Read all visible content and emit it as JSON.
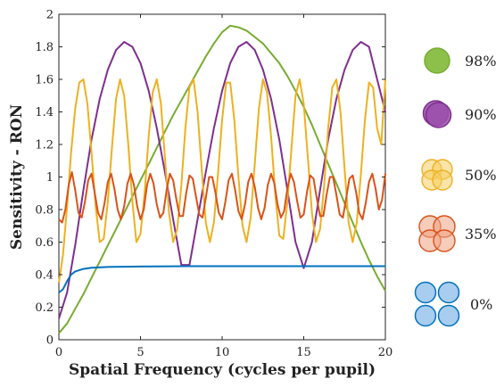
{
  "chart_data": {
    "type": "line",
    "title": "",
    "xlabel": "Spatial Frequency (cycles per pupil)",
    "ylabel": "Sensitivity - RON",
    "xlim": [
      0,
      20
    ],
    "ylim": [
      0,
      2
    ],
    "xticks": [
      0,
      5,
      10,
      15,
      20
    ],
    "xtick_labels": [
      "0",
      "5",
      "10",
      "15",
      "20"
    ],
    "yticks": [
      0,
      0.2,
      0.4,
      0.6,
      0.8,
      1,
      1.2,
      1.4,
      1.6,
      1.8,
      2
    ],
    "ytick_labels": [
      "0",
      "0.2",
      "0.4",
      "0.6",
      "0.8",
      "1",
      "1.2",
      "1.4",
      "1.6",
      "1.8",
      "2"
    ],
    "grid": false,
    "legend": {
      "placement": "right",
      "entries": [
        {
          "label": "98%",
          "icon": "single-circle-icon",
          "color": "#77ac30",
          "fill": "#8dc04a"
        },
        {
          "label": "90%",
          "icon": "two-circles-icon",
          "color": "#7e2f8e",
          "fill": "#9b4fab"
        },
        {
          "label": "50%",
          "icon": "four-overlapping-circles-icon",
          "color": "#edb120",
          "fill": "#f5cd63"
        },
        {
          "label": "35%",
          "icon": "four-overlapping-circles-icon",
          "color": "#d95319",
          "fill": "#eea283"
        },
        {
          "label": "0%",
          "icon": "four-separate-circles-icon",
          "color": "#0072bd",
          "fill": "#a9cdee"
        }
      ]
    },
    "series": [
      {
        "color": "#77ac30",
        "x": [
          0,
          0.5,
          1,
          1.5,
          2,
          2.5,
          3,
          3.5,
          4,
          4.5,
          5,
          5.5,
          6,
          6.5,
          7,
          7.5,
          8,
          8.5,
          9,
          9.5,
          10,
          10.5,
          11,
          11.5,
          12,
          12.5,
          13,
          13.5,
          14,
          14.5,
          15,
          15.5,
          16,
          16.5,
          17,
          17.5,
          18,
          18.5,
          19,
          19.5,
          20
        ],
        "y": [
          0.04,
          0.1,
          0.19,
          0.28,
          0.38,
          0.48,
          0.58,
          0.68,
          0.78,
          0.88,
          0.98,
          1.08,
          1.18,
          1.28,
          1.38,
          1.47,
          1.56,
          1.65,
          1.74,
          1.82,
          1.89,
          1.93,
          1.92,
          1.9,
          1.86,
          1.82,
          1.76,
          1.7,
          1.62,
          1.53,
          1.43,
          1.32,
          1.2,
          1.08,
          0.96,
          0.84,
          0.72,
          0.6,
          0.49,
          0.39,
          0.3
        ]
      },
      {
        "color": "#7e2f8e",
        "x": [
          0,
          0.5,
          1,
          1.5,
          2,
          2.5,
          3,
          3.5,
          4,
          4.5,
          5,
          5.5,
          6,
          6.5,
          7,
          7.5,
          8,
          8.5,
          9,
          9.5,
          10,
          10.5,
          11,
          11.5,
          12,
          12.5,
          13,
          13.5,
          14,
          14.5,
          15,
          15.5,
          16,
          16.5,
          17,
          17.5,
          18,
          18.5,
          19,
          19.5,
          20
        ],
        "y": [
          0.13,
          0.29,
          0.58,
          0.92,
          1.23,
          1.48,
          1.66,
          1.78,
          1.83,
          1.8,
          1.7,
          1.53,
          1.3,
          1.03,
          0.74,
          0.46,
          0.46,
          0.74,
          1.03,
          1.3,
          1.53,
          1.7,
          1.8,
          1.83,
          1.78,
          1.66,
          1.48,
          1.23,
          0.92,
          0.6,
          0.44,
          0.6,
          0.92,
          1.23,
          1.48,
          1.66,
          1.78,
          1.83,
          1.8,
          1.6,
          1.4
        ]
      },
      {
        "color": "#edb120",
        "x": [
          0,
          0.25,
          0.5,
          0.75,
          1,
          1.25,
          1.5,
          1.75,
          2,
          2.25,
          2.5,
          2.75,
          3,
          3.25,
          3.5,
          3.75,
          4,
          4.25,
          4.5,
          4.75,
          5,
          5.25,
          5.5,
          5.75,
          6,
          6.25,
          6.5,
          6.75,
          7,
          7.25,
          7.5,
          7.75,
          8,
          8.25,
          8.5,
          8.75,
          9,
          9.25,
          9.5,
          9.75,
          10,
          10.25,
          10.5,
          10.75,
          11,
          11.25,
          11.5,
          11.75,
          12,
          12.25,
          12.5,
          12.75,
          13,
          13.25,
          13.5,
          13.75,
          14,
          14.25,
          14.5,
          14.75,
          15,
          15.25,
          15.5,
          15.75,
          16,
          16.25,
          16.5,
          16.75,
          17,
          17.25,
          17.5,
          17.75,
          18,
          18.25,
          18.5,
          18.75,
          19,
          19.25,
          19.5,
          19.75,
          20
        ],
        "y": [
          0.35,
          0.52,
          0.82,
          1.15,
          1.42,
          1.58,
          1.6,
          1.45,
          1.15,
          0.82,
          0.6,
          0.62,
          0.85,
          1.18,
          1.48,
          1.6,
          1.5,
          1.2,
          0.85,
          0.6,
          0.65,
          0.9,
          1.25,
          1.52,
          1.6,
          1.45,
          1.12,
          0.78,
          0.6,
          0.68,
          0.95,
          1.3,
          1.55,
          1.6,
          1.4,
          1.05,
          0.72,
          0.6,
          0.72,
          1.02,
          1.35,
          1.58,
          1.58,
          1.35,
          1.0,
          0.7,
          0.6,
          0.75,
          1.08,
          1.42,
          1.6,
          1.52,
          1.25,
          0.9,
          0.64,
          0.62,
          0.85,
          1.18,
          1.5,
          1.6,
          1.45,
          1.12,
          0.78,
          0.6,
          0.68,
          0.95,
          1.3,
          1.55,
          1.6,
          1.4,
          1.05,
          0.72,
          0.6,
          0.72,
          1.02,
          1.35,
          1.58,
          1.55,
          1.3,
          1.2,
          1.6
        ]
      },
      {
        "color": "#d95319",
        "x": [
          0,
          0.2,
          0.4,
          0.6,
          0.8,
          1,
          1.2,
          1.4,
          1.6,
          1.8,
          2,
          2.2,
          2.4,
          2.6,
          2.8,
          3,
          3.2,
          3.4,
          3.6,
          3.8,
          4,
          4.2,
          4.4,
          4.6,
          4.8,
          5,
          5.2,
          5.4,
          5.6,
          5.8,
          6,
          6.2,
          6.4,
          6.6,
          6.8,
          7,
          7.2,
          7.4,
          7.6,
          7.8,
          8,
          8.2,
          8.4,
          8.6,
          8.8,
          9,
          9.2,
          9.4,
          9.6,
          9.8,
          10,
          10.2,
          10.4,
          10.6,
          10.8,
          11,
          11.2,
          11.4,
          11.6,
          11.8,
          12,
          12.2,
          12.4,
          12.6,
          12.8,
          13,
          13.2,
          13.4,
          13.6,
          13.8,
          14,
          14.2,
          14.4,
          14.6,
          14.8,
          15,
          15.2,
          15.4,
          15.6,
          15.8,
          16,
          16.2,
          16.4,
          16.6,
          16.8,
          17,
          17.2,
          17.4,
          17.6,
          17.8,
          18,
          18.2,
          18.4,
          18.6,
          18.8,
          19,
          19.2,
          19.4,
          19.6,
          19.8,
          20
        ],
        "y": [
          0.74,
          0.72,
          0.8,
          0.95,
          1.03,
          0.92,
          0.78,
          0.75,
          0.85,
          0.98,
          1.02,
          0.9,
          0.78,
          0.74,
          0.84,
          0.97,
          1.02,
          0.93,
          0.8,
          0.74,
          0.82,
          0.96,
          1.02,
          0.95,
          0.82,
          0.74,
          0.8,
          0.95,
          1.02,
          0.96,
          0.83,
          0.75,
          0.78,
          0.92,
          1.02,
          0.98,
          0.86,
          0.76,
          0.76,
          0.9,
          1.01,
          0.99,
          0.88,
          0.77,
          0.75,
          0.87,
          1.0,
          1.0,
          0.9,
          0.78,
          0.74,
          0.85,
          0.98,
          1.02,
          0.92,
          0.79,
          0.74,
          0.83,
          0.97,
          1.02,
          0.94,
          0.81,
          0.74,
          0.81,
          0.95,
          1.02,
          0.96,
          0.83,
          0.75,
          0.79,
          0.93,
          1.02,
          0.97,
          0.85,
          0.75,
          0.77,
          0.91,
          1.01,
          0.99,
          0.87,
          0.76,
          0.76,
          0.89,
          1.0,
          1.0,
          0.89,
          0.77,
          0.75,
          0.87,
          0.99,
          1.01,
          0.91,
          0.78,
          0.74,
          0.84,
          0.97,
          1.02,
          0.93,
          0.8,
          0.86,
          1.02
        ]
      },
      {
        "color": "#0072bd",
        "x": [
          0,
          0.25,
          0.5,
          0.75,
          1,
          1.5,
          2,
          3,
          4,
          5,
          6,
          8,
          10,
          12,
          14,
          16,
          18,
          20
        ],
        "y": [
          0.29,
          0.31,
          0.36,
          0.4,
          0.42,
          0.435,
          0.442,
          0.447,
          0.449,
          0.45,
          0.451,
          0.452,
          0.452,
          0.452,
          0.452,
          0.452,
          0.452,
          0.452
        ]
      }
    ]
  }
}
